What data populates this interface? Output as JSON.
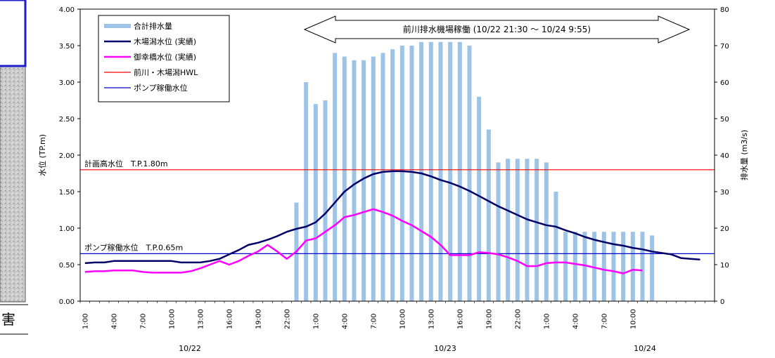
{
  "side_panel": {
    "text": "害"
  },
  "chart_data": {
    "type": "bar+line",
    "title": "",
    "ylabel_left": "水位 (TP.m)",
    "ylabel_right": "排水量 (m3/s)",
    "ylim_left": [
      0,
      4
    ],
    "ylim_right": [
      0,
      80
    ],
    "yticks_left": [
      "0.00",
      "0.50",
      "1.00",
      "1.50",
      "2.00",
      "2.50",
      "3.00",
      "3.50",
      "4.00"
    ],
    "yticks_right": [
      "0",
      "10",
      "20",
      "30",
      "40",
      "50",
      "60",
      "70",
      "80"
    ],
    "grid": false,
    "legend_position": "top-left",
    "x_tick_labels": [
      "1:00",
      "4:00",
      "7:00",
      "10:00",
      "13:00",
      "16:00",
      "19:00",
      "22:00",
      "1:00",
      "4:00",
      "7:00",
      "10:00",
      "13:00",
      "16:00",
      "19:00",
      "22:00",
      "1:00",
      "4:00",
      "7:00",
      "10:00"
    ],
    "date_labels": [
      "10/22",
      "10/23",
      "10/24"
    ],
    "bars": {
      "name": "合計排水量",
      "color": "#9dc3e6",
      "values": [
        0,
        0,
        0,
        0,
        0,
        0,
        0,
        0,
        0,
        0,
        0,
        0,
        0,
        0,
        0,
        0,
        0,
        0,
        0,
        0,
        0,
        0,
        27,
        60,
        54,
        55,
        68,
        67,
        66,
        66,
        67,
        68,
        69,
        70,
        70,
        71,
        71,
        71,
        71,
        71,
        70,
        56,
        47,
        38,
        39,
        39,
        39,
        39,
        38,
        30,
        19,
        19,
        19,
        19,
        19,
        19,
        19,
        19,
        19,
        18,
        0,
        0
      ]
    },
    "series": [
      {
        "name": "木場潟水位 (実績)",
        "color": "#000066",
        "values": [
          0.52,
          0.53,
          0.53,
          0.55,
          0.55,
          0.55,
          0.55,
          0.55,
          0.55,
          0.55,
          0.53,
          0.53,
          0.53,
          0.55,
          0.58,
          0.64,
          0.7,
          0.77,
          0.8,
          0.84,
          0.89,
          0.95,
          0.99,
          1.02,
          1.08,
          1.2,
          1.35,
          1.5,
          1.6,
          1.68,
          1.74,
          1.77,
          1.78,
          1.78,
          1.77,
          1.75,
          1.71,
          1.66,
          1.62,
          1.57,
          1.51,
          1.44,
          1.37,
          1.3,
          1.24,
          1.18,
          1.12,
          1.08,
          1.04,
          1.02,
          0.97,
          0.93,
          0.88,
          0.84,
          0.81,
          0.78,
          0.76,
          0.73,
          0.71,
          0.68,
          0.66,
          0.64,
          0.59,
          0.58,
          0.57
        ]
      },
      {
        "name": "御幸橋水位 (実績)",
        "color": "#ff00ff",
        "values": [
          0.4,
          0.41,
          0.41,
          0.42,
          0.42,
          0.42,
          0.4,
          0.39,
          0.39,
          0.39,
          0.39,
          0.41,
          0.45,
          0.5,
          0.55,
          0.5,
          0.55,
          0.62,
          0.68,
          0.77,
          0.68,
          0.58,
          0.68,
          0.83,
          0.86,
          0.95,
          1.04,
          1.15,
          1.18,
          1.22,
          1.26,
          1.22,
          1.17,
          1.1,
          1.04,
          0.96,
          0.88,
          0.77,
          0.63,
          0.63,
          0.63,
          0.67,
          0.66,
          0.64,
          0.6,
          0.55,
          0.48,
          0.48,
          0.52,
          0.53,
          0.53,
          0.51,
          0.49,
          0.46,
          0.43,
          0.41,
          0.38,
          0.43,
          0.42
        ]
      }
    ],
    "reference_lines": [
      {
        "name": "前川・木場潟HWL",
        "value": 1.8,
        "color": "#ff0000",
        "label": "計画高水位　T.P.1.80m"
      },
      {
        "name": "ポンプ稼働水位",
        "value": 0.65,
        "color": "#0000cc",
        "label": "ポンプ稼働水位　T.P.0.65m"
      }
    ],
    "annotation": {
      "text": "前川排水機場稼働 (10/22 21:30 ～ 10/24 9:55)"
    }
  }
}
